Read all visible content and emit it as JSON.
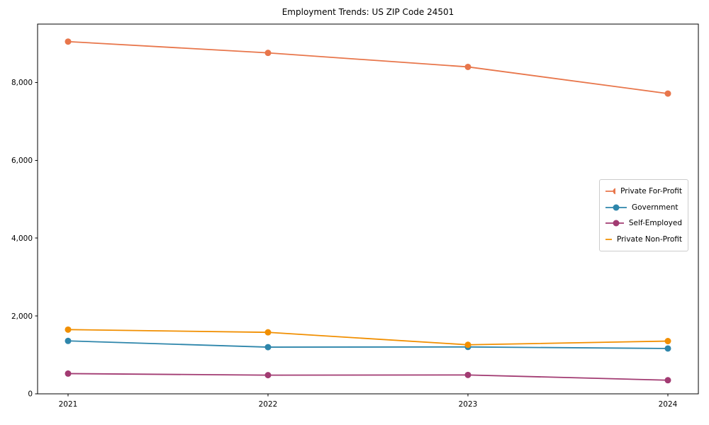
{
  "chart_data": {
    "type": "line",
    "title": "Employment Trends: US ZIP Code 24501",
    "categories": [
      "2021",
      "2022",
      "2023",
      "2024"
    ],
    "series": [
      {
        "name": "Private For-Profit",
        "color": "#E8764B",
        "values": [
          9050,
          8760,
          8400,
          7715
        ]
      },
      {
        "name": "Government",
        "color": "#2E86AB",
        "values": [
          1360,
          1200,
          1205,
          1165
        ]
      },
      {
        "name": "Self-Employed",
        "color": "#A23B72",
        "values": [
          520,
          480,
          485,
          350
        ]
      },
      {
        "name": "Private Non-Profit",
        "color": "#F18F01",
        "values": [
          1650,
          1580,
          1260,
          1355
        ]
      }
    ],
    "xlabel": "",
    "ylabel": "",
    "ylim": [
      0,
      9500
    ],
    "yticks": [
      0,
      2000,
      4000,
      6000,
      8000
    ],
    "ytick_labels": [
      "0",
      "2,000",
      "4,000",
      "6,000",
      "8,000"
    ],
    "legend_position": "center right",
    "grid": false,
    "marker": "circle",
    "axis_color": "#000000"
  }
}
